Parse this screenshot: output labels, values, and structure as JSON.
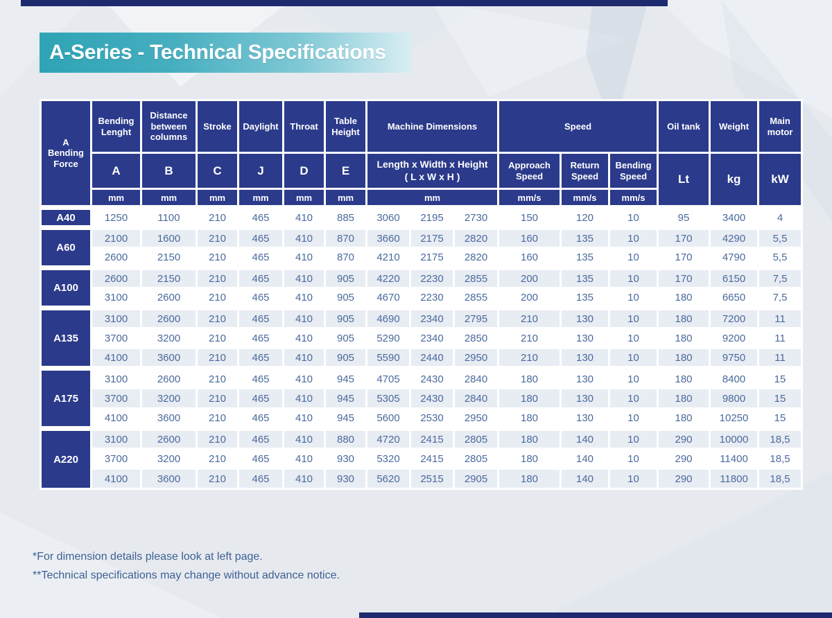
{
  "page": {
    "title": "A-Series - Technical Specifications",
    "footnotes": [
      "*For dimension details please look at left page.",
      "**Technical specifications may change without advance notice."
    ]
  },
  "colors": {
    "header_navy": "#2b3a8a",
    "edge_bar_navy": "#1d2a6e",
    "banner_teal": "#2ea4b5",
    "row_stripe": "#e8ecf3",
    "data_text_blue": "#4a6a9c"
  },
  "table": {
    "header": {
      "corner": "A\nBending\nForce",
      "cols": {
        "bending_lenght": {
          "name": "Bending Lenght",
          "letter": "A",
          "unit": "mm"
        },
        "distance": {
          "name": "Distance between columns",
          "letter": "B",
          "unit": "mm"
        },
        "stroke": {
          "name": "Stroke",
          "letter": "C",
          "unit": "mm"
        },
        "daylight": {
          "name": "Daylight",
          "letter": "J",
          "unit": "mm"
        },
        "throat": {
          "name": "Throat",
          "letter": "D",
          "unit": "mm"
        },
        "table_height": {
          "name": "Table Height",
          "letter": "E",
          "unit": "mm"
        },
        "machine_dimensions": {
          "name": "Machine Dimensions",
          "letter": "Length x Width x Height\n( L x W x H )",
          "unit": "mm"
        },
        "speed": {
          "name": "Speed",
          "approach": "Approach Speed",
          "return": "Return Speed",
          "bending": "Bending Speed",
          "unit": "mm/s"
        },
        "oil_tank": {
          "name": "Oil tank",
          "unit": "Lt"
        },
        "weight": {
          "name": "Weight",
          "unit": "kg"
        },
        "main_motor": {
          "name": "Main motor",
          "unit": "kW"
        }
      }
    },
    "groups": [
      {
        "model": "A40",
        "rows": [
          [
            "1250",
            "1100",
            "210",
            "465",
            "410",
            "885",
            "3060",
            "2195",
            "2730",
            "150",
            "120",
            "10",
            "95",
            "3400",
            "4"
          ]
        ]
      },
      {
        "model": "A60",
        "rows": [
          [
            "2100",
            "1600",
            "210",
            "465",
            "410",
            "870",
            "3660",
            "2175",
            "2820",
            "160",
            "135",
            "10",
            "170",
            "4290",
            "5,5"
          ],
          [
            "2600",
            "2150",
            "210",
            "465",
            "410",
            "870",
            "4210",
            "2175",
            "2820",
            "160",
            "135",
            "10",
            "170",
            "4790",
            "5,5"
          ]
        ]
      },
      {
        "model": "A100",
        "rows": [
          [
            "2600",
            "2150",
            "210",
            "465",
            "410",
            "905",
            "4220",
            "2230",
            "2855",
            "200",
            "135",
            "10",
            "170",
            "6150",
            "7,5"
          ],
          [
            "3100",
            "2600",
            "210",
            "465",
            "410",
            "905",
            "4670",
            "2230",
            "2855",
            "200",
            "135",
            "10",
            "180",
            "6650",
            "7,5"
          ]
        ]
      },
      {
        "model": "A135",
        "rows": [
          [
            "3100",
            "2600",
            "210",
            "465",
            "410",
            "905",
            "4690",
            "2340",
            "2795",
            "210",
            "130",
            "10",
            "180",
            "7200",
            "11"
          ],
          [
            "3700",
            "3200",
            "210",
            "465",
            "410",
            "905",
            "5290",
            "2340",
            "2850",
            "210",
            "130",
            "10",
            "180",
            "9200",
            "11"
          ],
          [
            "4100",
            "3600",
            "210",
            "465",
            "410",
            "905",
            "5590",
            "2440",
            "2950",
            "210",
            "130",
            "10",
            "180",
            "9750",
            "11"
          ]
        ]
      },
      {
        "model": "A175",
        "rows": [
          [
            "3100",
            "2600",
            "210",
            "465",
            "410",
            "945",
            "4705",
            "2430",
            "2840",
            "180",
            "130",
            "10",
            "180",
            "8400",
            "15"
          ],
          [
            "3700",
            "3200",
            "210",
            "465",
            "410",
            "945",
            "5305",
            "2430",
            "2840",
            "180",
            "130",
            "10",
            "180",
            "9800",
            "15"
          ],
          [
            "4100",
            "3600",
            "210",
            "465",
            "410",
            "945",
            "5600",
            "2530",
            "2950",
            "180",
            "130",
            "10",
            "180",
            "10250",
            "15"
          ]
        ]
      },
      {
        "model": "A220",
        "rows": [
          [
            "3100",
            "2600",
            "210",
            "465",
            "410",
            "880",
            "4720",
            "2415",
            "2805",
            "180",
            "140",
            "10",
            "290",
            "10000",
            "18,5"
          ],
          [
            "3700",
            "3200",
            "210",
            "465",
            "410",
            "930",
            "5320",
            "2415",
            "2805",
            "180",
            "140",
            "10",
            "290",
            "11400",
            "18,5"
          ],
          [
            "4100",
            "3600",
            "210",
            "465",
            "410",
            "930",
            "5620",
            "2515",
            "2905",
            "180",
            "140",
            "10",
            "290",
            "11800",
            "18,5"
          ]
        ]
      }
    ]
  }
}
